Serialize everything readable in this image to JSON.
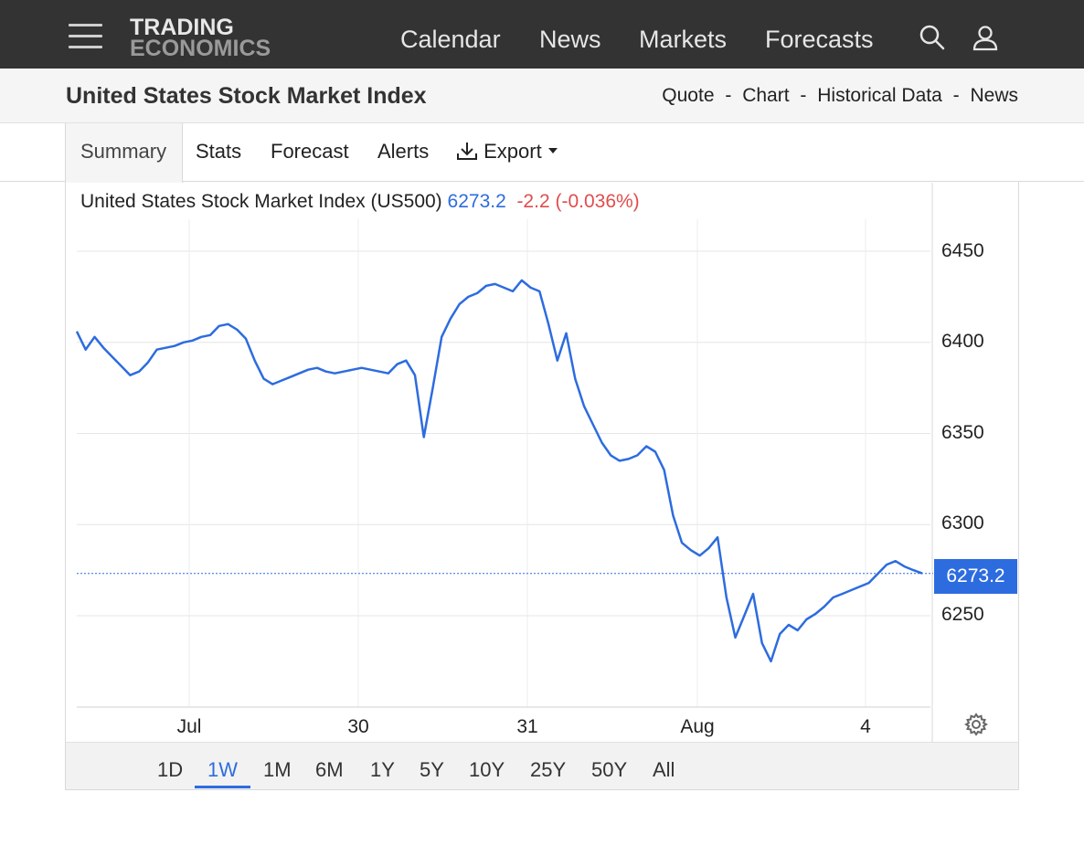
{
  "header": {
    "logo_line1": "TRADING",
    "logo_line2": "ECONOMICS",
    "nav": [
      "Calendar",
      "News",
      "Markets",
      "Forecasts"
    ]
  },
  "subheader": {
    "title": "United States Stock Market Index",
    "breadcrumbs": [
      "Quote",
      "Chart",
      "Historical Data",
      "News"
    ],
    "separator": "-"
  },
  "tabs": {
    "summary": "Summary",
    "stats": "Stats",
    "forecast": "Forecast",
    "alerts": "Alerts",
    "export": "Export"
  },
  "quote": {
    "name": "United States Stock Market Index (US500)",
    "price": "6273.2",
    "change": "-2.2",
    "change_pct": "(-0.036%)",
    "last_value_tag": "6273.2"
  },
  "ranges": [
    "1D",
    "1W",
    "1M",
    "6M",
    "1Y",
    "5Y",
    "10Y",
    "25Y",
    "50Y",
    "All"
  ],
  "active_range": "1W",
  "colors": {
    "accent": "#2d6cdf",
    "negative": "#e24c4c",
    "topbar": "#333333"
  },
  "chart_data": {
    "type": "line",
    "title": "United States Stock Market Index (US500)",
    "ylim": [
      6200,
      6460
    ],
    "yticks": [
      "6450",
      "6400",
      "6350",
      "6300",
      "6250"
    ],
    "xticks": [
      "Jul",
      "30",
      "31",
      "Aug",
      "4"
    ],
    "grid": true,
    "last_value": 6273.2,
    "series": [
      {
        "values": [
          6406,
          6396,
          6403,
          6397,
          6392,
          6387,
          6382,
          6384,
          6389,
          6396,
          6397,
          6398,
          6400,
          6401,
          6403,
          6404,
          6409,
          6410,
          6407,
          6402,
          6390,
          6380,
          6377,
          6379,
          6381,
          6383,
          6385,
          6386,
          6384,
          6383,
          6384,
          6385,
          6386,
          6385,
          6384,
          6383,
          6388,
          6390,
          6382,
          6348,
          6375,
          6403,
          6413,
          6421,
          6425,
          6427,
          6431,
          6432,
          6430,
          6428,
          6434,
          6430,
          6428,
          6410,
          6390,
          6405,
          6380,
          6365,
          6355,
          6345,
          6338,
          6335,
          6336,
          6338,
          6343,
          6340,
          6330,
          6305,
          6290,
          6286,
          6283,
          6287,
          6293,
          6260,
          6238,
          6250,
          6262,
          6235,
          6225,
          6240,
          6245,
          6242,
          6248,
          6251,
          6255,
          6260,
          6262,
          6264,
          6266,
          6268,
          6273,
          6278,
          6280,
          6277,
          6275,
          6273.2
        ]
      }
    ]
  }
}
